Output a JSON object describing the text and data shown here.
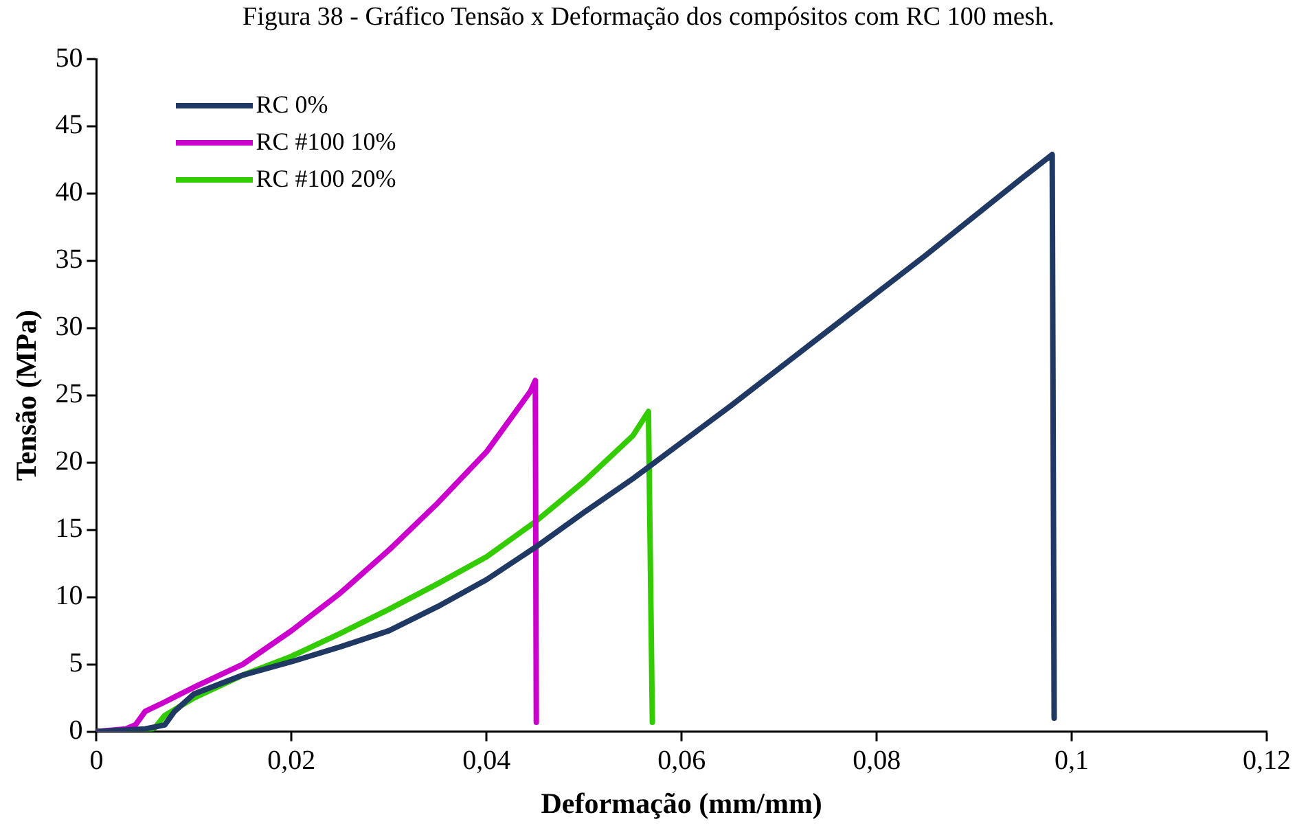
{
  "chart_data": {
    "type": "line",
    "title": "Figura 38 - Gráfico Tensão x Deformação dos compósitos com RC 100 mesh.",
    "xlabel": "Deformação (mm/mm)",
    "ylabel": "Tensão (MPa)",
    "xlim": [
      0,
      0.12
    ],
    "xticks": [
      0,
      {
        "value": 0.02,
        "label": "0,02"
      },
      {
        "value": 0.04,
        "label": "0,04"
      },
      {
        "value": 0.06,
        "label": "0,06"
      },
      {
        "value": 0.08,
        "label": "0,08"
      },
      {
        "value": 0.1,
        "label": "0,1"
      },
      {
        "value": 0.12,
        "label": "0,12"
      }
    ],
    "ylim": [
      0,
      50
    ],
    "yticks": [
      0,
      5,
      10,
      15,
      20,
      25,
      30,
      35,
      40,
      45,
      50
    ],
    "grid": false,
    "legend": "top left",
    "marker": "none",
    "line_style": "solid",
    "series": [
      {
        "name": "RC 0%",
        "color": "#203864",
        "x": [
          0,
          0.005,
          0.007,
          0.008,
          0.01,
          0.015,
          0.02,
          0.025,
          0.03,
          0.035,
          0.04,
          0.045,
          0.05,
          0.055,
          0.06,
          0.065,
          0.07,
          0.075,
          0.08,
          0.085,
          0.09,
          0.095,
          0.098,
          0.0982
        ],
        "values": [
          0,
          0.2,
          0.5,
          1.5,
          2.8,
          4.2,
          5.2,
          6.3,
          7.5,
          9.3,
          11.3,
          13.7,
          16.3,
          18.8,
          21.5,
          24.2,
          27,
          29.8,
          32.6,
          35.4,
          38.3,
          41.2,
          42.9,
          1
        ]
      },
      {
        "name": "RC #100 10%",
        "color": "#cc00cc",
        "x": [
          0,
          0.003,
          0.004,
          0.005,
          0.007,
          0.01,
          0.015,
          0.02,
          0.025,
          0.03,
          0.035,
          0.04,
          0.0445,
          0.045,
          0.0451
        ],
        "values": [
          0,
          0.2,
          0.5,
          1.5,
          2.2,
          3.3,
          5,
          7.5,
          10.3,
          13.5,
          17,
          20.8,
          25.3,
          26.1,
          0.7
        ]
      },
      {
        "name": "RC #100 20%",
        "color": "#33cc00",
        "x": [
          0,
          0.005,
          0.006,
          0.007,
          0.01,
          0.015,
          0.02,
          0.025,
          0.03,
          0.035,
          0.04,
          0.045,
          0.05,
          0.055,
          0.0566,
          0.057
        ],
        "values": [
          0,
          0,
          0.3,
          1.2,
          2.5,
          4.2,
          5.6,
          7.3,
          9.1,
          11,
          13,
          15.6,
          18.6,
          22,
          23.8,
          0.7
        ]
      }
    ]
  }
}
